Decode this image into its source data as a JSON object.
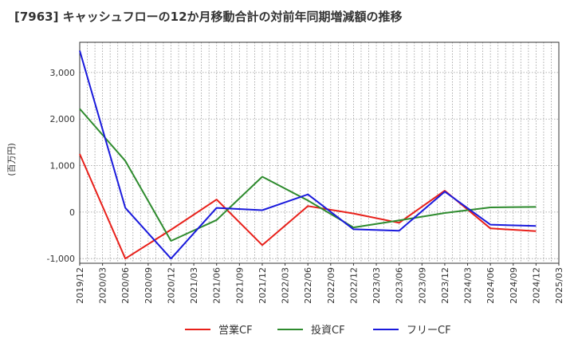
{
  "chart_data": {
    "type": "line",
    "title": "[7963]  キャッシュフローの12か月移動合計の対前年同期増減額の推移",
    "ylabel": "(百万円)",
    "xlabel": "",
    "categories": [
      "2019/12",
      "2020/03",
      "2020/06",
      "2020/09",
      "2020/12",
      "2021/03",
      "2021/06",
      "2021/09",
      "2021/12",
      "2022/03",
      "2022/06",
      "2022/09",
      "2022/12",
      "2023/03",
      "2023/06",
      "2023/09",
      "2023/12",
      "2024/03",
      "2024/06",
      "2024/09",
      "2024/12",
      "2025/03"
    ],
    "ylim": [
      -1100,
      3650
    ],
    "yticks": [
      -1000,
      0,
      1000,
      2000,
      3000
    ],
    "ytick_labels": [
      "-1,000",
      "0",
      "1,000",
      "2,000",
      "3,000"
    ],
    "grid": true,
    "legend_position": "bottom",
    "series": [
      {
        "name": "営業CF",
        "color": "#e8201a",
        "x": [
          "2019/12",
          "2020/06",
          "2020/12",
          "2021/06",
          "2021/12",
          "2022/06",
          "2022/12",
          "2023/06",
          "2023/12",
          "2024/06",
          "2024/12"
        ],
        "values": [
          1250,
          -1000,
          -380,
          270,
          -710,
          130,
          -30,
          -230,
          460,
          -350,
          -410
        ]
      },
      {
        "name": "投資CF",
        "color": "#2e8b2e",
        "x": [
          "2019/12",
          "2020/06",
          "2020/12",
          "2021/06",
          "2021/12",
          "2022/06",
          "2022/12",
          "2023/06",
          "2023/12",
          "2024/06",
          "2024/12"
        ],
        "values": [
          2220,
          1100,
          -620,
          -170,
          760,
          250,
          -330,
          -180,
          -20,
          100,
          110
        ]
      },
      {
        "name": "フリーCF",
        "color": "#1a1adc",
        "x": [
          "2019/12",
          "2020/06",
          "2020/12",
          "2021/06",
          "2021/12",
          "2022/06",
          "2022/12",
          "2023/06",
          "2023/12",
          "2024/06",
          "2024/12"
        ],
        "values": [
          3470,
          90,
          -1000,
          90,
          40,
          380,
          -370,
          -400,
          440,
          -270,
          -300
        ]
      }
    ]
  }
}
